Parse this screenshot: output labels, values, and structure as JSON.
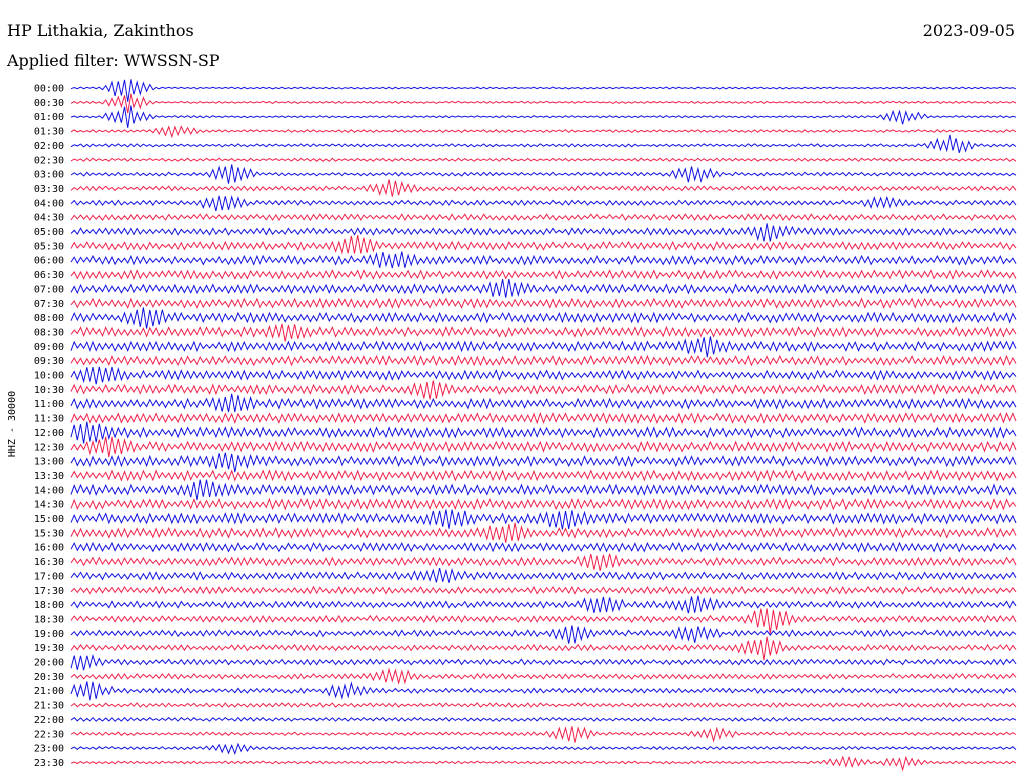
{
  "header": {
    "station": "HP Lithakia, Zakinthos",
    "date": "2023-09-05",
    "filter": "Applied filter: WWSSN-SP"
  },
  "chart_data": {
    "type": "line",
    "subtype": "helicorder",
    "ylabel": "HHZ - 30000",
    "row_labels": [
      "00:00",
      "00:30",
      "01:00",
      "01:30",
      "02:00",
      "02:30",
      "03:00",
      "03:30",
      "04:00",
      "04:30",
      "05:00",
      "05:30",
      "06:00",
      "06:30",
      "07:00",
      "07:30",
      "08:00",
      "08:30",
      "09:00",
      "09:30",
      "10:00",
      "10:30",
      "11:00",
      "11:30",
      "12:00",
      "12:30",
      "13:00",
      "13:30",
      "14:00",
      "14:30",
      "15:00",
      "15:30",
      "16:00",
      "16:30",
      "17:00",
      "17:30",
      "18:00",
      "18:30",
      "19:00",
      "19:30",
      "20:00",
      "20:30",
      "21:00",
      "21:30",
      "22:00",
      "22:30",
      "23:00",
      "23:30"
    ],
    "colors": [
      "#1010e0",
      "#f0204a"
    ],
    "row_noise": [
      0.6,
      0.7,
      0.7,
      0.9,
      1.0,
      1.0,
      1.2,
      1.5,
      1.6,
      2.0,
      2.2,
      2.6,
      2.8,
      2.8,
      2.9,
      3.0,
      3.1,
      3.1,
      3.0,
      3.0,
      3.0,
      3.0,
      3.1,
      3.1,
      3.2,
      3.2,
      3.2,
      3.2,
      3.3,
      3.3,
      3.3,
      3.1,
      2.8,
      2.6,
      2.4,
      2.3,
      2.2,
      2.1,
      2.0,
      1.9,
      1.8,
      1.7,
      1.6,
      1.4,
      1.2,
      1.1,
      1.0,
      0.9
    ],
    "events": [
      {
        "row": 0,
        "x": 0.06,
        "amp": 14
      },
      {
        "row": 1,
        "x": 0.06,
        "amp": 10
      },
      {
        "row": 2,
        "x": 0.06,
        "amp": 12
      },
      {
        "row": 2,
        "x": 0.88,
        "amp": 7
      },
      {
        "row": 3,
        "x": 0.11,
        "amp": 6
      },
      {
        "row": 4,
        "x": 0.93,
        "amp": 10
      },
      {
        "row": 6,
        "x": 0.17,
        "amp": 10
      },
      {
        "row": 6,
        "x": 0.66,
        "amp": 9
      },
      {
        "row": 7,
        "x": 0.34,
        "amp": 8
      },
      {
        "row": 8,
        "x": 0.16,
        "amp": 8
      },
      {
        "row": 8,
        "x": 0.86,
        "amp": 6
      },
      {
        "row": 10,
        "x": 0.74,
        "amp": 9
      },
      {
        "row": 11,
        "x": 0.3,
        "amp": 9
      },
      {
        "row": 12,
        "x": 0.34,
        "amp": 8
      },
      {
        "row": 14,
        "x": 0.46,
        "amp": 8
      },
      {
        "row": 16,
        "x": 0.08,
        "amp": 9
      },
      {
        "row": 17,
        "x": 0.23,
        "amp": 8
      },
      {
        "row": 18,
        "x": 0.67,
        "amp": 10
      },
      {
        "row": 20,
        "x": 0.03,
        "amp": 9
      },
      {
        "row": 21,
        "x": 0.38,
        "amp": 8
      },
      {
        "row": 22,
        "x": 0.17,
        "amp": 8
      },
      {
        "row": 24,
        "x": 0.02,
        "amp": 10
      },
      {
        "row": 25,
        "x": 0.04,
        "amp": 8
      },
      {
        "row": 26,
        "x": 0.17,
        "amp": 9
      },
      {
        "row": 28,
        "x": 0.14,
        "amp": 8
      },
      {
        "row": 30,
        "x": 0.4,
        "amp": 10
      },
      {
        "row": 30,
        "x": 0.52,
        "amp": 9
      },
      {
        "row": 31,
        "x": 0.46,
        "amp": 9
      },
      {
        "row": 33,
        "x": 0.56,
        "amp": 8
      },
      {
        "row": 34,
        "x": 0.39,
        "amp": 8
      },
      {
        "row": 36,
        "x": 0.56,
        "amp": 9
      },
      {
        "row": 36,
        "x": 0.66,
        "amp": 8
      },
      {
        "row": 37,
        "x": 0.74,
        "amp": 14
      },
      {
        "row": 38,
        "x": 0.53,
        "amp": 9
      },
      {
        "row": 38,
        "x": 0.66,
        "amp": 7
      },
      {
        "row": 39,
        "x": 0.73,
        "amp": 12
      },
      {
        "row": 40,
        "x": 0.01,
        "amp": 8
      },
      {
        "row": 41,
        "x": 0.34,
        "amp": 7
      },
      {
        "row": 42,
        "x": 0.02,
        "amp": 9
      },
      {
        "row": 42,
        "x": 0.29,
        "amp": 7
      },
      {
        "row": 45,
        "x": 0.53,
        "amp": 9
      },
      {
        "row": 45,
        "x": 0.68,
        "amp": 6
      },
      {
        "row": 46,
        "x": 0.17,
        "amp": 5
      },
      {
        "row": 47,
        "x": 0.82,
        "amp": 6
      },
      {
        "row": 47,
        "x": 0.88,
        "amp": 6
      }
    ]
  }
}
